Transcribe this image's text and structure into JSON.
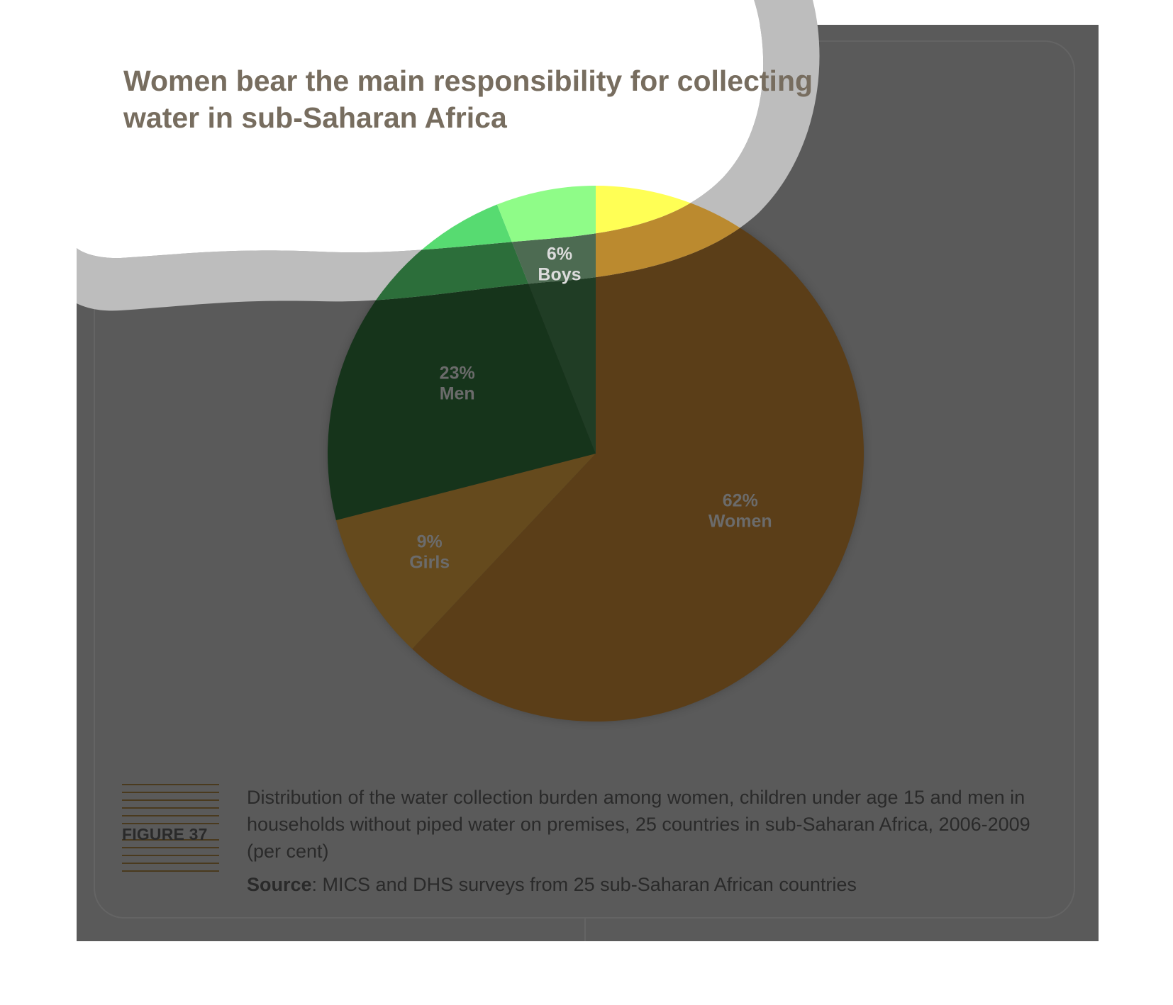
{
  "title": {
    "line1": "Women bear the main responsibility for collecting",
    "line2": "water in sub-Saharan Africa"
  },
  "figure_label": "FIGURE 37",
  "caption": "Distribution of the water collection burden among women, children under age 15 and men in households without piped water on premises, 25 countries in sub-Saharan Africa, 2006-2009 (per cent)",
  "source": {
    "label": "Source",
    "text": ": MICS and DHS surveys from 25 sub-Saharan African countries"
  },
  "colors": {
    "page": "#ffffff",
    "panel": "#5a5a5a",
    "title": "#776d5f",
    "women": "#5b3e18",
    "girls": "#654a1d",
    "men": "#16341b",
    "boys": "#203d25",
    "slice_label": "#6b6b6b",
    "highlight_yellow": "#ffff55",
    "highlight_orange": "#bb8a2f",
    "highlight_light_green": "#8ffc88",
    "highlight_green": "#57db71",
    "highlight_dark_green": "#2c6e3a",
    "highlight_boys": "#4d6b52",
    "boys_label_highlight": "#dcdcdc"
  },
  "chart_data": {
    "type": "pie",
    "title": "Women bear the main responsibility for collecting water in sub-Saharan Africa",
    "unit": "%",
    "slices": [
      {
        "label": "Women",
        "value": 62,
        "display": "62%"
      },
      {
        "label": "Girls",
        "value": 9,
        "display": "9%"
      },
      {
        "label": "Men",
        "value": 23,
        "display": "23%"
      },
      {
        "label": "Boys",
        "value": 6,
        "display": "6%"
      }
    ]
  }
}
